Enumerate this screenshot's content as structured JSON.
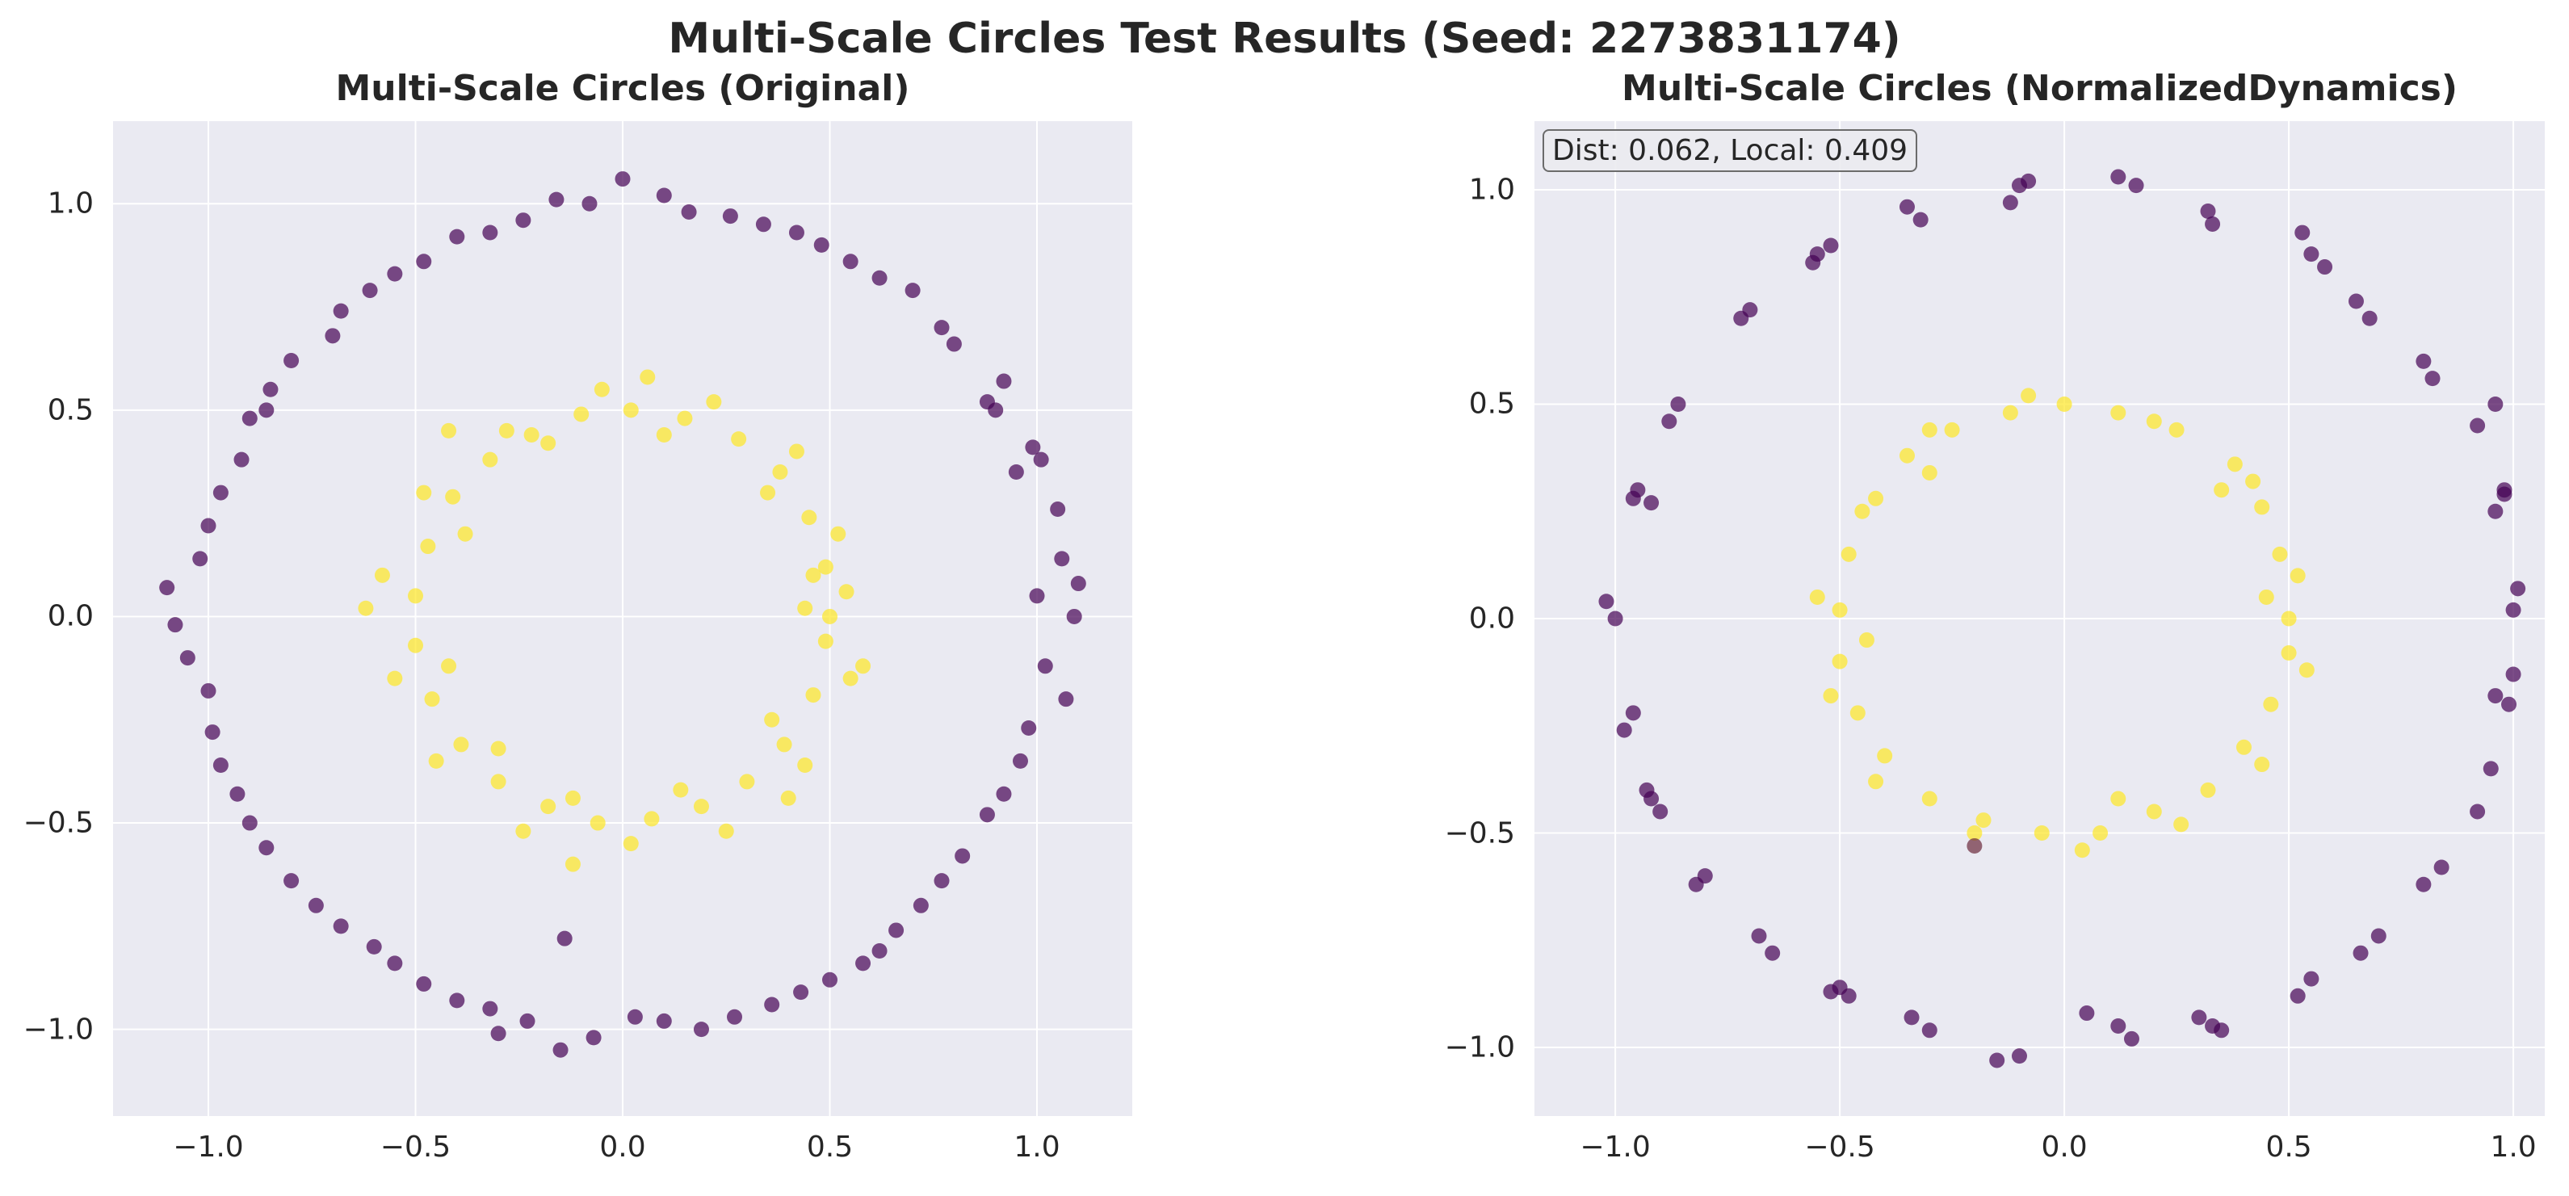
{
  "figure": {
    "suptitle": "Multi-Scale Circles Test Results (Seed: 2273831174)"
  },
  "colors": {
    "outer_class": "#440154",
    "inner_class": "#fde725",
    "panel_bg": "#eaeaf2",
    "grid": "#ffffff"
  },
  "chart_data": [
    {
      "type": "scatter",
      "title": "Multi-Scale Circles (Original)",
      "xlabel": "",
      "ylabel": "",
      "xlim": [
        -1.23,
        1.23
      ],
      "ylim": [
        -1.21,
        1.2
      ],
      "xticks": [
        -1.0,
        -0.5,
        0.0,
        0.5,
        1.0
      ],
      "yticks": [
        -1.0,
        -0.5,
        0.0,
        0.5,
        1.0
      ],
      "xtick_labels": [
        "−1.0",
        "−0.5",
        "0.0",
        "0.5",
        "1.0"
      ],
      "ytick_labels": [
        "−1.0",
        "−0.5",
        "0.0",
        "0.5",
        "1.0"
      ],
      "grid": true,
      "series": [
        {
          "color": "#440154",
          "points": [
            [
              1.09,
              0.0
            ],
            [
              1.05,
              0.26
            ],
            [
              0.99,
              0.41
            ],
            [
              0.92,
              0.57
            ],
            [
              0.77,
              0.7
            ],
            [
              0.7,
              0.79
            ],
            [
              0.55,
              0.86
            ],
            [
              0.42,
              0.93
            ],
            [
              0.26,
              0.97
            ],
            [
              0.1,
              1.02
            ],
            [
              -0.08,
              1.0
            ],
            [
              -0.24,
              0.96
            ],
            [
              -0.4,
              0.92
            ],
            [
              -0.55,
              0.83
            ],
            [
              -0.68,
              0.74
            ],
            [
              -0.8,
              0.62
            ],
            [
              -0.9,
              0.48
            ],
            [
              -0.97,
              0.3
            ],
            [
              -1.02,
              0.14
            ],
            [
              -1.08,
              -0.02
            ],
            [
              -1.0,
              -0.18
            ],
            [
              -0.97,
              -0.36
            ],
            [
              -0.9,
              -0.5
            ],
            [
              -0.8,
              -0.64
            ],
            [
              -0.68,
              -0.75
            ],
            [
              -0.55,
              -0.84
            ],
            [
              -0.4,
              -0.93
            ],
            [
              -0.23,
              -0.98
            ],
            [
              -0.07,
              -1.02
            ],
            [
              0.1,
              -0.98
            ],
            [
              0.27,
              -0.97
            ],
            [
              0.43,
              -0.91
            ],
            [
              0.58,
              -0.84
            ],
            [
              0.72,
              -0.7
            ],
            [
              0.82,
              -0.58
            ],
            [
              0.92,
              -0.43
            ],
            [
              0.98,
              -0.27
            ],
            [
              1.02,
              -0.12
            ],
            [
              1.06,
              0.14
            ],
            [
              0.95,
              0.35
            ],
            [
              0.88,
              0.52
            ],
            [
              0.62,
              0.82
            ],
            [
              0.34,
              0.95
            ],
            [
              0.0,
              1.06
            ],
            [
              -0.32,
              0.93
            ],
            [
              -0.61,
              0.79
            ],
            [
              -0.85,
              0.55
            ],
            [
              -1.0,
              0.22
            ],
            [
              -1.05,
              -0.1
            ],
            [
              -0.93,
              -0.43
            ],
            [
              -0.74,
              -0.7
            ],
            [
              -0.48,
              -0.89
            ],
            [
              -0.15,
              -1.05
            ],
            [
              0.19,
              -1.0
            ],
            [
              0.5,
              -0.88
            ],
            [
              0.77,
              -0.64
            ],
            [
              0.96,
              -0.35
            ],
            [
              1.1,
              0.08
            ],
            [
              0.9,
              0.5
            ],
            [
              0.48,
              0.9
            ],
            [
              -0.16,
              1.01
            ],
            [
              -0.48,
              0.86
            ],
            [
              -0.92,
              0.38
            ],
            [
              -1.1,
              0.07
            ],
            [
              -0.86,
              -0.56
            ],
            [
              -0.6,
              -0.8
            ],
            [
              -0.32,
              -0.95
            ],
            [
              0.03,
              -0.97
            ],
            [
              0.36,
              -0.94
            ],
            [
              0.66,
              -0.76
            ],
            [
              0.88,
              -0.48
            ],
            [
              1.07,
              -0.2
            ],
            [
              1.01,
              0.38
            ],
            [
              0.8,
              0.66
            ],
            [
              0.16,
              0.98
            ],
            [
              -0.7,
              0.68
            ],
            [
              -0.99,
              -0.28
            ],
            [
              -0.3,
              -1.01
            ],
            [
              0.62,
              -0.81
            ],
            [
              1.0,
              0.05
            ],
            [
              -0.86,
              0.5
            ],
            [
              -0.14,
              -0.78
            ]
          ]
        },
        {
          "color": "#fde725",
          "points": [
            [
              0.5,
              0.0
            ],
            [
              0.49,
              0.12
            ],
            [
              0.45,
              0.24
            ],
            [
              0.38,
              0.35
            ],
            [
              0.28,
              0.43
            ],
            [
              0.15,
              0.48
            ],
            [
              0.02,
              0.5
            ],
            [
              -0.1,
              0.49
            ],
            [
              -0.22,
              0.44
            ],
            [
              -0.32,
              0.38
            ],
            [
              -0.41,
              0.29
            ],
            [
              -0.47,
              0.17
            ],
            [
              -0.5,
              0.05
            ],
            [
              -0.5,
              -0.07
            ],
            [
              -0.46,
              -0.2
            ],
            [
              -0.39,
              -0.31
            ],
            [
              -0.3,
              -0.4
            ],
            [
              -0.18,
              -0.46
            ],
            [
              -0.06,
              -0.5
            ],
            [
              0.07,
              -0.49
            ],
            [
              0.19,
              -0.46
            ],
            [
              0.3,
              -0.4
            ],
            [
              0.39,
              -0.31
            ],
            [
              0.46,
              -0.19
            ],
            [
              0.49,
              -0.06
            ],
            [
              0.54,
              0.06
            ],
            [
              0.52,
              0.2
            ],
            [
              0.42,
              0.4
            ],
            [
              0.22,
              0.52
            ],
            [
              -0.05,
              0.55
            ],
            [
              -0.28,
              0.45
            ],
            [
              -0.48,
              0.3
            ],
            [
              -0.58,
              0.1
            ],
            [
              -0.55,
              -0.15
            ],
            [
              -0.45,
              -0.35
            ],
            [
              -0.24,
              -0.52
            ],
            [
              0.02,
              -0.55
            ],
            [
              0.25,
              -0.52
            ],
            [
              0.44,
              -0.36
            ],
            [
              0.55,
              -0.15
            ],
            [
              0.46,
              0.1
            ],
            [
              0.35,
              0.3
            ],
            [
              0.1,
              0.44
            ],
            [
              -0.18,
              0.42
            ],
            [
              -0.38,
              0.2
            ],
            [
              -0.42,
              -0.12
            ],
            [
              -0.3,
              -0.32
            ],
            [
              -0.12,
              -0.44
            ],
            [
              0.14,
              -0.42
            ],
            [
              0.36,
              -0.25
            ],
            [
              0.44,
              0.02
            ],
            [
              0.58,
              -0.12
            ],
            [
              -0.62,
              0.02
            ],
            [
              -0.12,
              -0.6
            ],
            [
              0.06,
              0.58
            ],
            [
              -0.42,
              0.45
            ],
            [
              0.4,
              -0.44
            ]
          ]
        }
      ]
    },
    {
      "type": "scatter",
      "title": "Multi-Scale Circles (NormalizedDynamics)",
      "xlabel": "",
      "ylabel": "",
      "xlim": [
        -1.18,
        1.07
      ],
      "ylim": [
        -1.16,
        1.16
      ],
      "xticks": [
        -1.0,
        -0.5,
        0.0,
        0.5,
        1.0
      ],
      "yticks": [
        -1.0,
        -0.5,
        0.0,
        0.5,
        1.0
      ],
      "xtick_labels": [
        "−1.0",
        "−0.5",
        "0.0",
        "0.5",
        "1.0"
      ],
      "ytick_labels": [
        "−1.0",
        "−0.5",
        "0.0",
        "0.5",
        "1.0"
      ],
      "grid": true,
      "annotation": "Dist: 0.062, Local: 0.409",
      "series": [
        {
          "color": "#440154",
          "points": [
            [
              1.01,
              0.07
            ],
            [
              1.0,
              0.02
            ],
            [
              0.98,
              0.29
            ],
            [
              0.96,
              0.25
            ],
            [
              0.92,
              0.45
            ],
            [
              0.96,
              0.5
            ],
            [
              0.82,
              0.56
            ],
            [
              0.8,
              0.6
            ],
            [
              0.68,
              0.7
            ],
            [
              0.65,
              0.74
            ],
            [
              0.55,
              0.85
            ],
            [
              0.53,
              0.9
            ],
            [
              0.33,
              0.92
            ],
            [
              0.32,
              0.95
            ],
            [
              0.16,
              1.01
            ],
            [
              0.12,
              1.03
            ],
            [
              -0.1,
              1.01
            ],
            [
              -0.12,
              0.97
            ],
            [
              -0.32,
              0.93
            ],
            [
              -0.35,
              0.96
            ],
            [
              -0.52,
              0.87
            ],
            [
              -0.56,
              0.83
            ],
            [
              -0.7,
              0.72
            ],
            [
              -0.72,
              0.7
            ],
            [
              -0.86,
              0.5
            ],
            [
              -0.88,
              0.46
            ],
            [
              -0.95,
              0.3
            ],
            [
              -0.92,
              0.27
            ],
            [
              -1.02,
              0.04
            ],
            [
              -1.0,
              0.0
            ],
            [
              -0.98,
              -0.26
            ],
            [
              -0.96,
              -0.22
            ],
            [
              -0.93,
              -0.4
            ],
            [
              -0.9,
              -0.45
            ],
            [
              -0.82,
              -0.62
            ],
            [
              -0.8,
              -0.6
            ],
            [
              -0.68,
              -0.74
            ],
            [
              -0.65,
              -0.78
            ],
            [
              -0.5,
              -0.86
            ],
            [
              -0.48,
              -0.88
            ],
            [
              -0.34,
              -0.93
            ],
            [
              -0.3,
              -0.96
            ],
            [
              -0.1,
              -1.02
            ],
            [
              -0.15,
              -1.03
            ],
            [
              0.05,
              -0.92
            ],
            [
              0.12,
              -0.95
            ],
            [
              0.15,
              -0.98
            ],
            [
              0.3,
              -0.93
            ],
            [
              0.35,
              -0.96
            ],
            [
              0.52,
              -0.88
            ],
            [
              0.55,
              -0.84
            ],
            [
              0.66,
              -0.78
            ],
            [
              0.7,
              -0.74
            ],
            [
              0.8,
              -0.62
            ],
            [
              0.84,
              -0.58
            ],
            [
              0.92,
              -0.45
            ],
            [
              0.95,
              -0.35
            ],
            [
              0.99,
              -0.2
            ],
            [
              1.0,
              -0.13
            ],
            [
              0.98,
              0.3
            ],
            [
              0.58,
              0.82
            ],
            [
              -0.08,
              1.02
            ],
            [
              -0.55,
              0.85
            ],
            [
              -0.96,
              0.28
            ],
            [
              -0.92,
              -0.42
            ],
            [
              -0.52,
              -0.87
            ],
            [
              0.33,
              -0.95
            ],
            [
              0.96,
              -0.18
            ]
          ]
        },
        {
          "color": "#fde725",
          "points": [
            [
              0.5,
              0.0
            ],
            [
              0.48,
              0.15
            ],
            [
              0.44,
              0.26
            ],
            [
              0.38,
              0.36
            ],
            [
              0.25,
              0.44
            ],
            [
              0.12,
              0.48
            ],
            [
              0.0,
              0.5
            ],
            [
              -0.12,
              0.48
            ],
            [
              -0.25,
              0.44
            ],
            [
              -0.35,
              0.38
            ],
            [
              -0.42,
              0.28
            ],
            [
              -0.48,
              0.15
            ],
            [
              -0.5,
              0.02
            ],
            [
              -0.5,
              -0.1
            ],
            [
              -0.46,
              -0.22
            ],
            [
              -0.4,
              -0.32
            ],
            [
              -0.3,
              -0.42
            ],
            [
              -0.18,
              -0.47
            ],
            [
              -0.05,
              -0.5
            ],
            [
              0.08,
              -0.5
            ],
            [
              0.2,
              -0.45
            ],
            [
              0.32,
              -0.4
            ],
            [
              0.4,
              -0.3
            ],
            [
              0.46,
              -0.2
            ],
            [
              0.5,
              -0.08
            ],
            [
              0.52,
              0.1
            ],
            [
              0.42,
              0.32
            ],
            [
              0.2,
              0.46
            ],
            [
              -0.08,
              0.52
            ],
            [
              -0.3,
              0.44
            ],
            [
              -0.45,
              0.25
            ],
            [
              -0.55,
              0.05
            ],
            [
              -0.52,
              -0.18
            ],
            [
              -0.42,
              -0.38
            ],
            [
              -0.2,
              -0.5
            ],
            [
              0.04,
              -0.54
            ],
            [
              0.26,
              -0.48
            ],
            [
              0.44,
              -0.34
            ],
            [
              0.54,
              -0.12
            ],
            [
              0.45,
              0.05
            ],
            [
              -0.44,
              -0.05
            ],
            [
              0.35,
              0.3
            ],
            [
              -0.3,
              0.34
            ],
            [
              0.12,
              -0.42
            ]
          ]
        },
        {
          "color": "#6b2a3c",
          "points": [
            [
              -0.2,
              -0.53
            ]
          ]
        }
      ]
    }
  ]
}
